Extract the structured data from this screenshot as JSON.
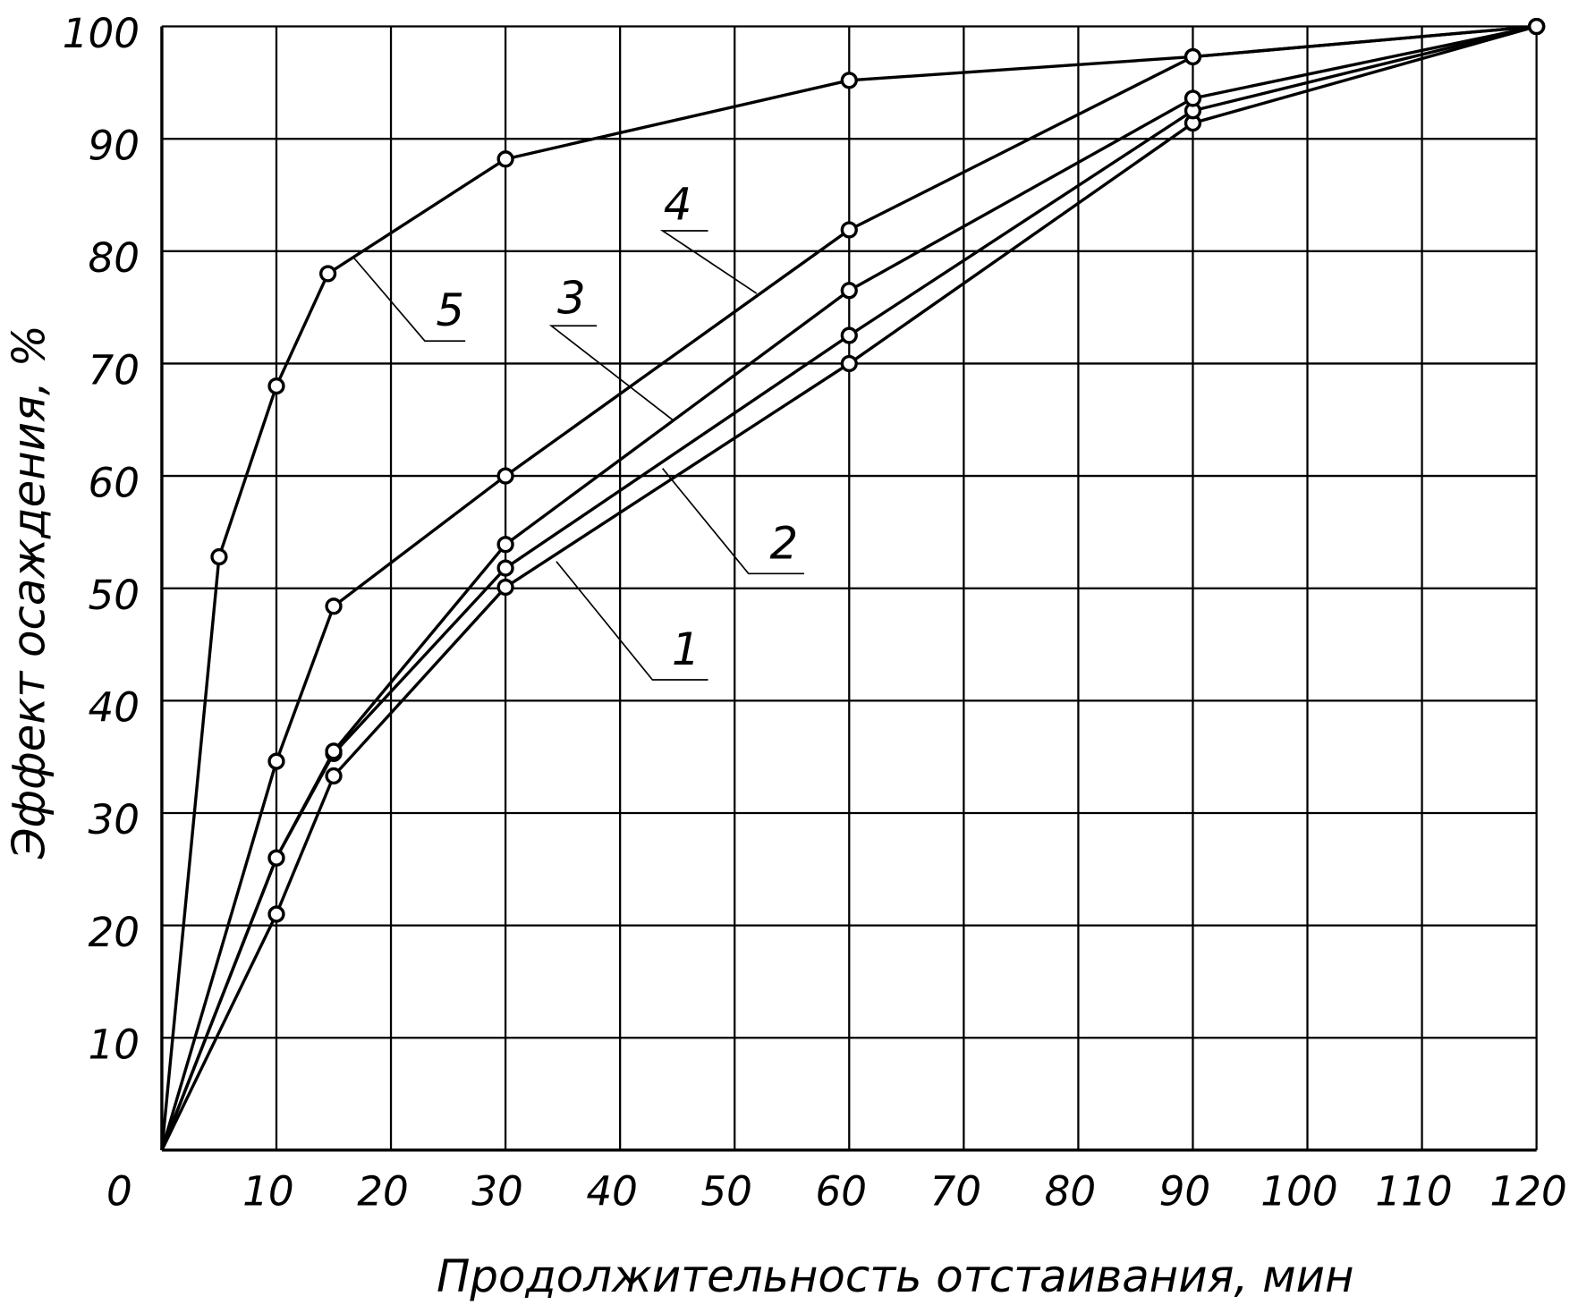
{
  "chart_data": {
    "type": "line",
    "x_label": "Продолжительность отстаивания, мин",
    "y_label": "Эффект осаждения, %",
    "xlim": [
      0,
      120
    ],
    "xticks": [
      0,
      10,
      20,
      30,
      40,
      50,
      60,
      70,
      80,
      90,
      100,
      110,
      120
    ],
    "ylim": [
      0,
      100
    ],
    "yticks": [
      10,
      20,
      30,
      40,
      50,
      60,
      70,
      80,
      90,
      100
    ],
    "grid": true,
    "color": "#000000",
    "series": [
      {
        "name": "1",
        "color": "#000000",
        "x": [
          0,
          10,
          15,
          30,
          60,
          90,
          120
        ],
        "values": [
          0,
          21,
          33.3,
          50.1,
          70,
          91.4,
          100
        ]
      },
      {
        "name": "2",
        "color": "#000000",
        "x": [
          0,
          10,
          15,
          30,
          60,
          90,
          120
        ],
        "values": [
          0,
          26,
          35.3,
          51.8,
          72.5,
          92.5,
          100
        ]
      },
      {
        "name": "3",
        "color": "#000000",
        "x": [
          0,
          10,
          15,
          30,
          60,
          90,
          120
        ],
        "values": [
          0,
          26,
          35.5,
          53.9,
          76.5,
          93.6,
          100
        ]
      },
      {
        "name": "4",
        "color": "#000000",
        "x": [
          0,
          10,
          15,
          30,
          60,
          90,
          120
        ],
        "values": [
          0,
          34.6,
          48.4,
          60,
          81.9,
          97.3,
          100
        ]
      },
      {
        "name": "5",
        "color": "#000000",
        "x": [
          0,
          5,
          10,
          14.5,
          30,
          60,
          90,
          120
        ],
        "values": [
          0,
          52.8,
          68,
          78,
          88.2,
          95.2,
          97.3,
          100
        ]
      }
    ]
  }
}
